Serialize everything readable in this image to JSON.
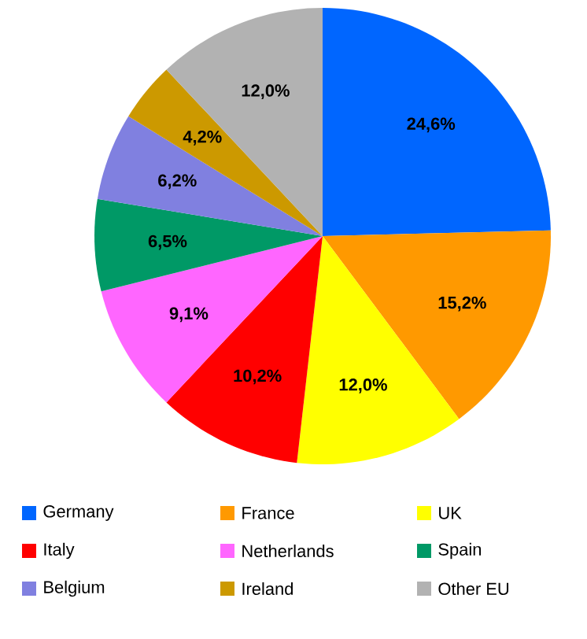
{
  "chart_data": {
    "type": "pie",
    "categories": [
      "Germany",
      "France",
      "UK",
      "Italy",
      "Netherlands",
      "Spain",
      "Belgium",
      "Ireland",
      "Other EU"
    ],
    "values": [
      24.6,
      15.2,
      12.0,
      10.2,
      9.1,
      6.5,
      6.2,
      4.2,
      12.0
    ],
    "colors": [
      "#0066ff",
      "#ff9900",
      "#ffff00",
      "#ff0000",
      "#ff66ff",
      "#009966",
      "#8080e0",
      "#cc9900",
      "#b2b2b2"
    ],
    "value_labels": [
      "24,6%",
      "15,2%",
      "12,0%",
      "10,2%",
      "9,1%",
      "6,5%",
      "6,2%",
      "4,2%",
      "12,0%"
    ],
    "legend": "bottom"
  }
}
